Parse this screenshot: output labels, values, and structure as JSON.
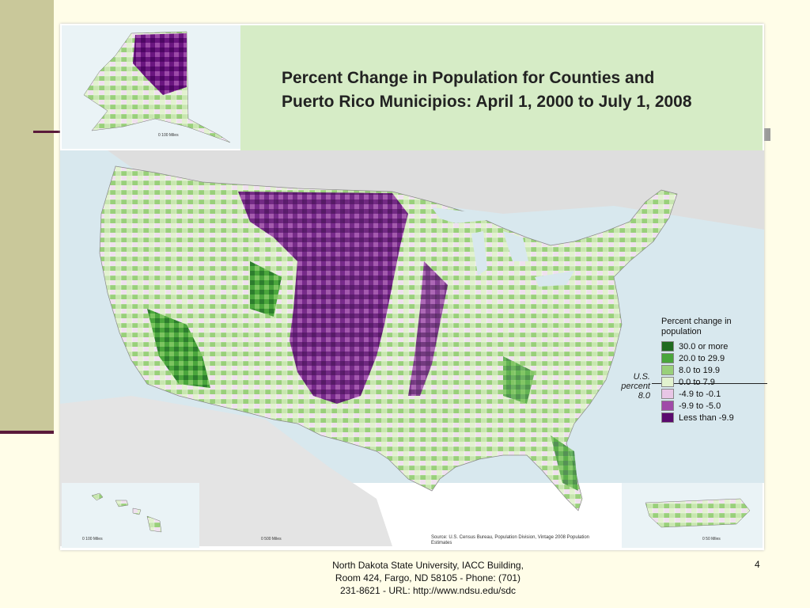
{
  "map": {
    "title_line1": "Percent Change in Population for Counties and",
    "title_line2": "Puerto Rico Municipios: April 1, 2000 to July 1, 2008",
    "legend": {
      "title": "Percent change in population",
      "items": [
        {
          "label": "30.0 or more",
          "color": "#1f6b1f"
        },
        {
          "label": "20.0 to 29.9",
          "color": "#4aa63c"
        },
        {
          "label": "8.0 to 19.9",
          "color": "#99d07a"
        },
        {
          "label": "0.0 to 7.9",
          "color": "#e2f2cf"
        },
        {
          "label": "-4.9 to -0.1",
          "color": "#e8c6e6"
        },
        {
          "label": "-9.9 to -5.0",
          "color": "#a04aa8"
        },
        {
          "label": "Less than -9.9",
          "color": "#5a0a6e"
        }
      ],
      "us_note": "U.S. percent 8.0"
    },
    "scale_alaska": "0    100 Miles",
    "scale_hawaii": "0    100 Miles",
    "scale_main": "0    500 Miles",
    "scale_pr": "0    50 Miles",
    "source": "Source: U.S. Census Bureau, Population Division, Vintage 2008 Population Estimates"
  },
  "footer": {
    "line1": "North Dakota State University, IACC Building,",
    "line2": "Room 424, Fargo, ND 58105  -  Phone:  (701)",
    "line3": "231-8621  -  URL: http://www.ndsu.edu/sdc"
  },
  "page_number": "4"
}
